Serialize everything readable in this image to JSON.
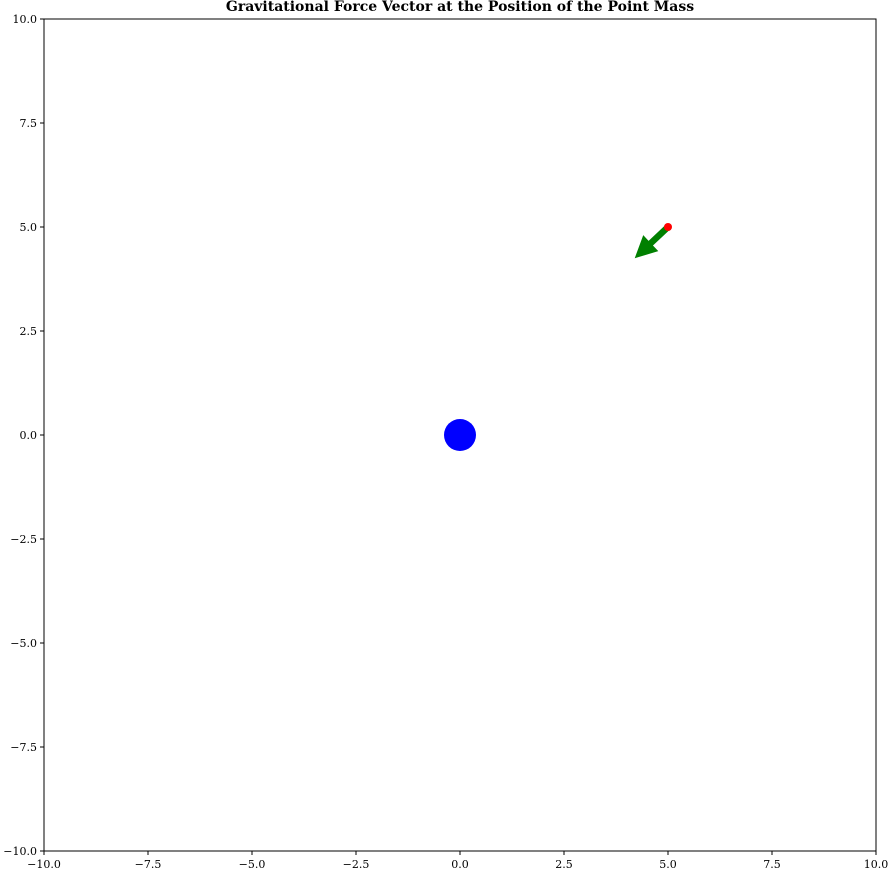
{
  "chart_data": {
    "type": "scatter",
    "title": "Gravitational Force Vector at the Position of the Point Mass",
    "xlabel": "",
    "ylabel": "",
    "xlim": [
      -10,
      10
    ],
    "ylim": [
      -10,
      10
    ],
    "grid": false,
    "x_ticks": [
      -10,
      -7.5,
      -5,
      -2.5,
      0,
      2.5,
      5,
      7.5,
      10
    ],
    "y_ticks": [
      -10,
      -7.5,
      -5,
      -2.5,
      0,
      2.5,
      5,
      7.5,
      10
    ],
    "x_tick_labels": [
      "−10.0",
      "−7.5",
      "−5.0",
      "−2.5",
      "0.0",
      "2.5",
      "5.0",
      "7.5",
      "10.0"
    ],
    "y_tick_labels": [
      "−10.0",
      "−7.5",
      "−5.0",
      "−2.5",
      "0.0",
      "2.5",
      "5.0",
      "7.5",
      "10.0"
    ],
    "central_mass": {
      "x": 0,
      "y": 0,
      "color": "#0000ff"
    },
    "point_mass": {
      "x": 5,
      "y": 5,
      "color": "#ff0000"
    },
    "force_vector": {
      "x": 5,
      "y": 5,
      "dx": -0.8,
      "dy": -0.75,
      "color": "#008000"
    }
  }
}
